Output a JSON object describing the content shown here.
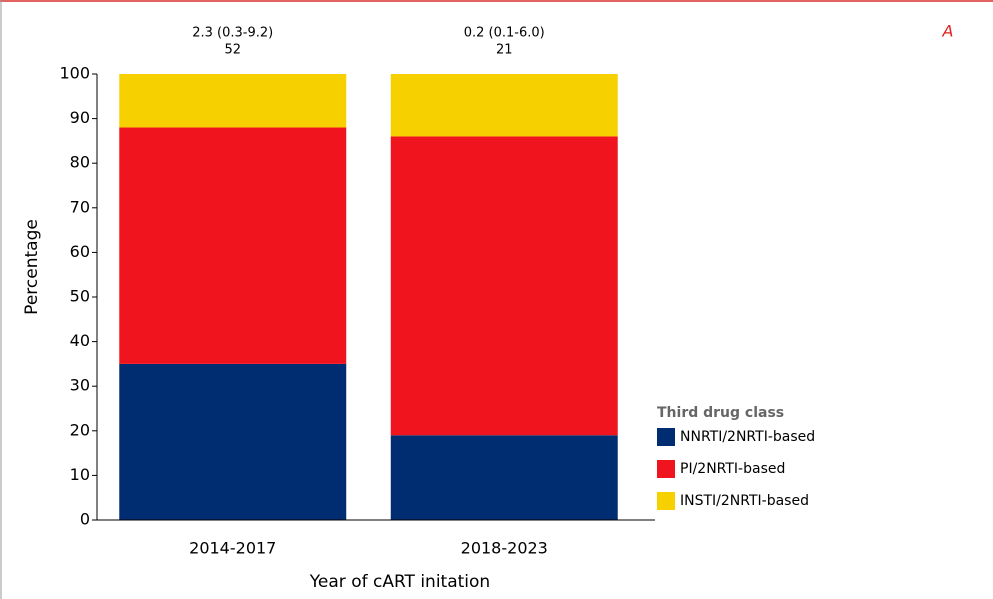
{
  "chart_data": {
    "type": "stacked_bar",
    "panel_label": "A",
    "xlabel": "Year of cART initation",
    "ylabel": "Percentage",
    "categories": [
      "2014-2017",
      "2018-2023"
    ],
    "annotations": [
      [
        "2.3 (0.3-9.2)",
        "52"
      ],
      [
        "0.2 (0.1-6.0)",
        "21"
      ]
    ],
    "legend_title": "Third drug class",
    "series": [
      {
        "name": "NNRTI/2NRTI-based",
        "color": "#002d72",
        "values": [
          35,
          19
        ]
      },
      {
        "name": "PI/2NRTI-based",
        "color": "#f0141e",
        "values": [
          53,
          67
        ]
      },
      {
        "name": "INSTI/2NRTI-based",
        "color": "#f7d000",
        "values": [
          12,
          14
        ]
      }
    ],
    "ylim": [
      0,
      100
    ],
    "yticks": [
      0,
      10,
      20,
      30,
      40,
      50,
      60,
      70,
      80,
      90,
      100
    ]
  }
}
